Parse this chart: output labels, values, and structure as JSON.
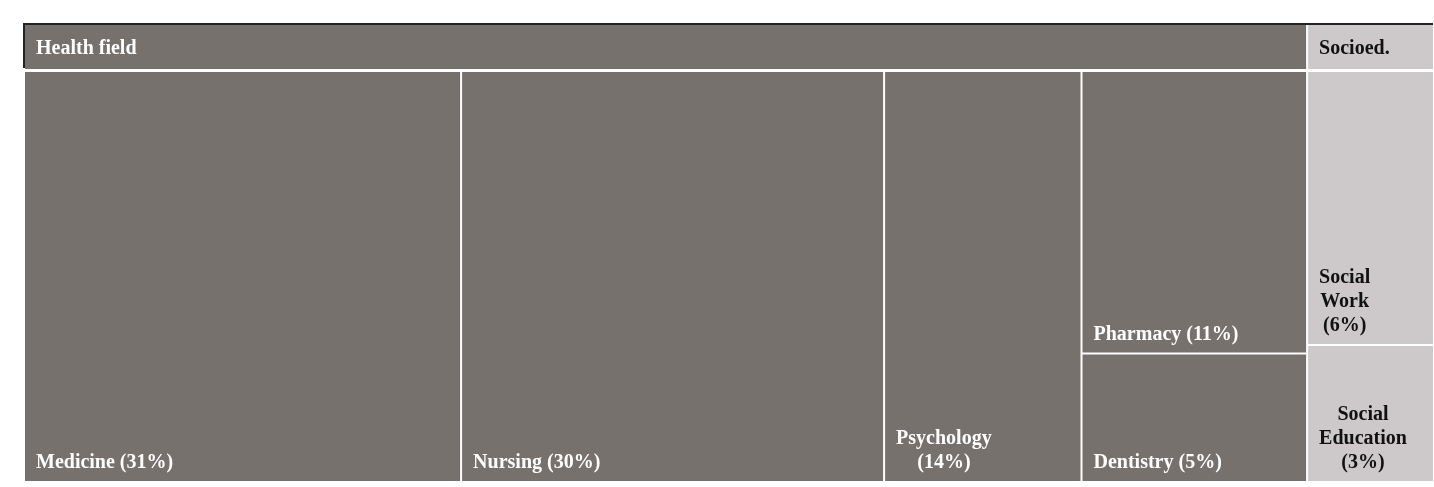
{
  "chart_data": {
    "type": "other",
    "categories": [
      "Medicine",
      "Nursing",
      "Psychology",
      "Pharmacy",
      "Dentistry",
      "Social Work",
      "Social Education"
    ],
    "series": [
      {
        "name": "Health field",
        "color": "#77716e",
        "values": [
          31,
          30,
          14,
          11,
          5,
          null,
          null
        ],
        "value_labels": [
          "(31%)",
          "(30%)",
          "(14%)",
          "(11%)",
          "(5%)",
          null,
          null
        ]
      },
      {
        "name": "Socioed.",
        "color": "#cdc9ca",
        "values": [
          null,
          null,
          null,
          null,
          null,
          6,
          3
        ],
        "value_labels": [
          null,
          null,
          null,
          null,
          null,
          "(6%)",
          "(3%)"
        ]
      }
    ]
  }
}
